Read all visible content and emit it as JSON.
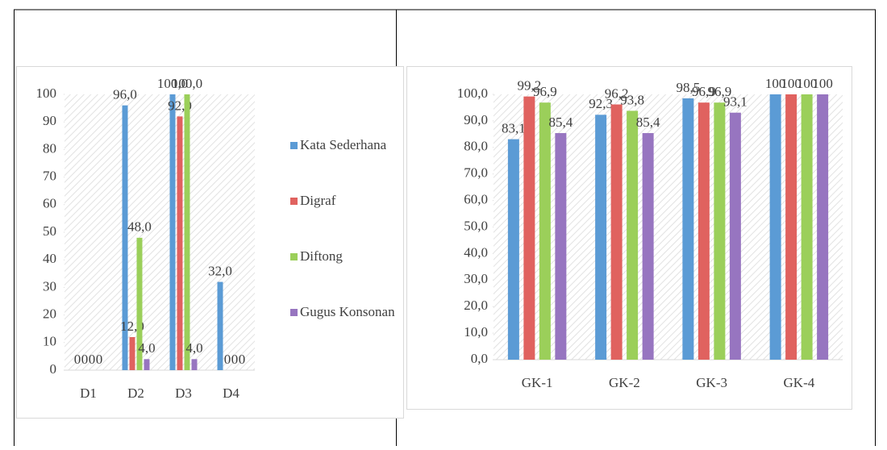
{
  "chart_data": [
    {
      "type": "bar",
      "categories": [
        "D1",
        "D2",
        "D3",
        "D4"
      ],
      "series": [
        {
          "name": "Kata Sederhana",
          "color": "#5b9bd5",
          "values": [
            0,
            96,
            100,
            32
          ],
          "value_labels": [
            "0",
            "96,0",
            "100,0",
            "32,0"
          ]
        },
        {
          "name": "Digraf",
          "color": "#e0625f",
          "values": [
            0,
            12,
            92,
            0
          ],
          "value_labels": [
            "0",
            "12,0",
            "92,0",
            "0"
          ]
        },
        {
          "name": "Diftong",
          "color": "#9bcf5a",
          "values": [
            0,
            48,
            100,
            0
          ],
          "value_labels": [
            "0",
            "48,0",
            "100,0",
            "0"
          ]
        },
        {
          "name": "Gugus Konsonan",
          "color": "#9775c0",
          "values": [
            0,
            4,
            4,
            0
          ],
          "value_labels": [
            "0",
            "4,0",
            "4,0",
            "0"
          ]
        }
      ],
      "ylim": [
        0,
        100
      ],
      "yticks": [
        0,
        10,
        20,
        30,
        40,
        50,
        60,
        70,
        80,
        90,
        100
      ],
      "legend": "right"
    },
    {
      "type": "bar",
      "categories": [
        "GK-1",
        "GK-2",
        "GK-3",
        "GK-4"
      ],
      "series": [
        {
          "color": "#5b9bd5",
          "values": [
            83.1,
            92.3,
            98.5,
            100
          ],
          "value_labels": [
            "83,1",
            "92,3",
            "98,5",
            "100"
          ]
        },
        {
          "color": "#e0625f",
          "values": [
            99.2,
            96.2,
            96.9,
            100
          ],
          "value_labels": [
            "99,2",
            "96,2",
            "96,9",
            "100"
          ]
        },
        {
          "color": "#9bcf5a",
          "values": [
            96.9,
            93.8,
            96.9,
            100
          ],
          "value_labels": [
            "96,9",
            "93,8",
            "96,9",
            "100"
          ]
        },
        {
          "color": "#9775c0",
          "values": [
            85.4,
            85.4,
            93.1,
            100
          ],
          "value_labels": [
            "85,4",
            "85,4",
            "93,1",
            "100"
          ]
        }
      ],
      "ylim": [
        0,
        100
      ],
      "yticks": [
        {
          "value": 0,
          "label": "0,0"
        },
        {
          "value": 10,
          "label": "10,0"
        },
        {
          "value": 20,
          "label": "20,0"
        },
        {
          "value": 30,
          "label": "30,0"
        },
        {
          "value": 40,
          "label": "40,0"
        },
        {
          "value": 50,
          "label": "50,0"
        },
        {
          "value": 60,
          "label": "60,0"
        },
        {
          "value": 70,
          "label": "70,0"
        },
        {
          "value": 80,
          "label": "80,0"
        },
        {
          "value": 90,
          "label": "90,0"
        },
        {
          "value": 100,
          "label": "100,0"
        }
      ]
    }
  ]
}
